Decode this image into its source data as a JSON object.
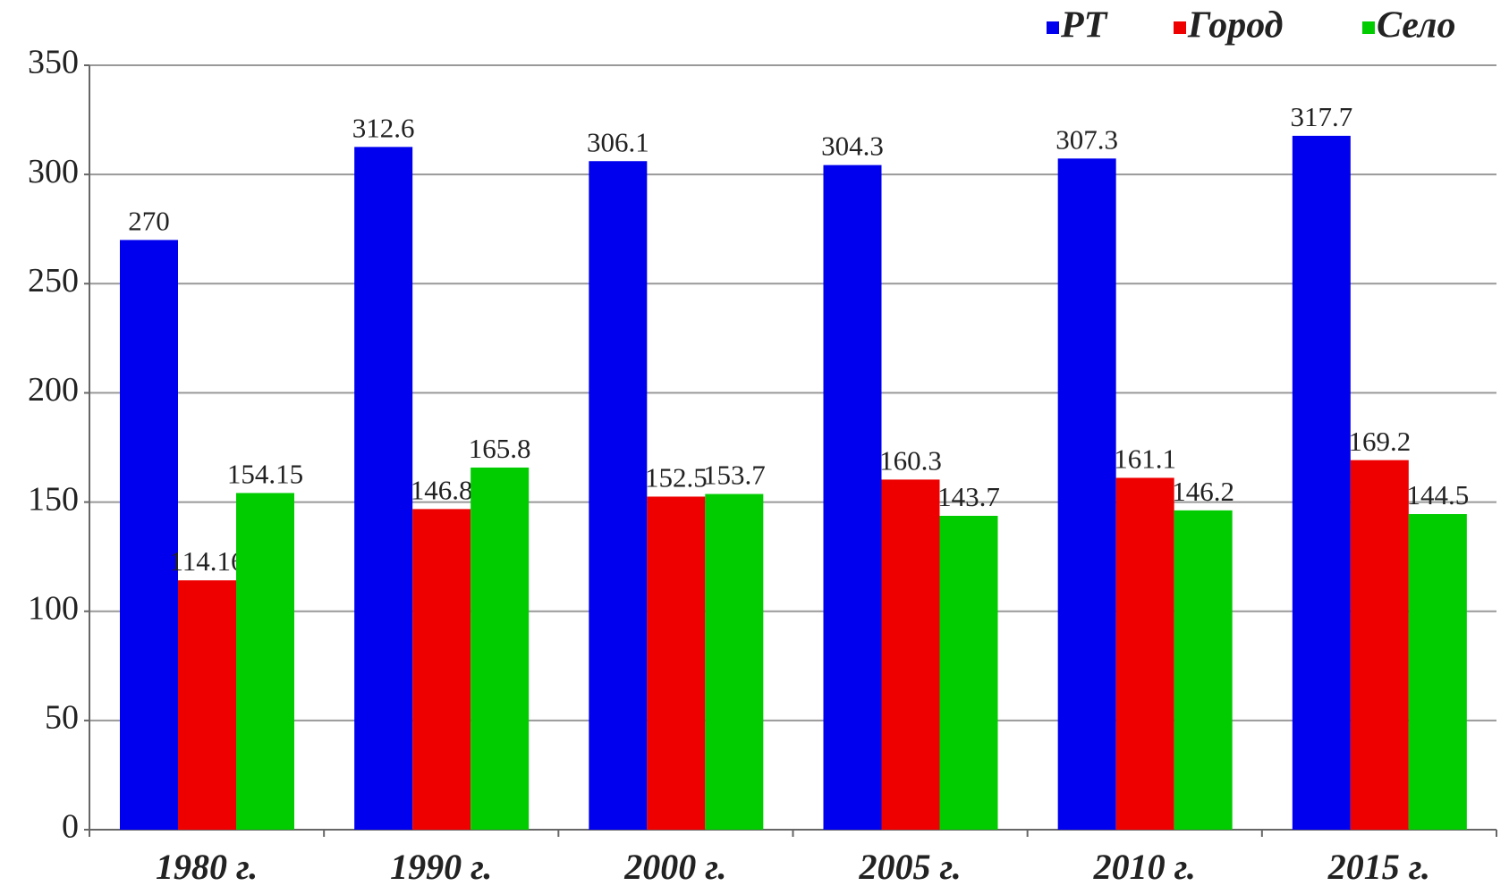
{
  "chart_data": {
    "type": "bar",
    "categories": [
      "1980 г.",
      "1990 г.",
      "2000 г.",
      "2005 г.",
      "2010 г.",
      "2015 г."
    ],
    "series": [
      {
        "name": "РТ",
        "color": "#0000ee",
        "values": [
          270,
          312.6,
          306.1,
          304.3,
          307.3,
          317.7
        ]
      },
      {
        "name": "Город",
        "color": "#ee0000",
        "values": [
          114.16,
          146.8,
          152.5,
          160.3,
          161.1,
          169.2
        ]
      },
      {
        "name": "Село",
        "color": "#00cc00",
        "values": [
          154.15,
          165.8,
          153.7,
          143.7,
          146.2,
          144.5
        ]
      }
    ],
    "ylim": [
      0,
      350
    ],
    "yticks": [
      0,
      50,
      100,
      150,
      200,
      250,
      300,
      350
    ],
    "grid": true,
    "legend": "top-right"
  }
}
